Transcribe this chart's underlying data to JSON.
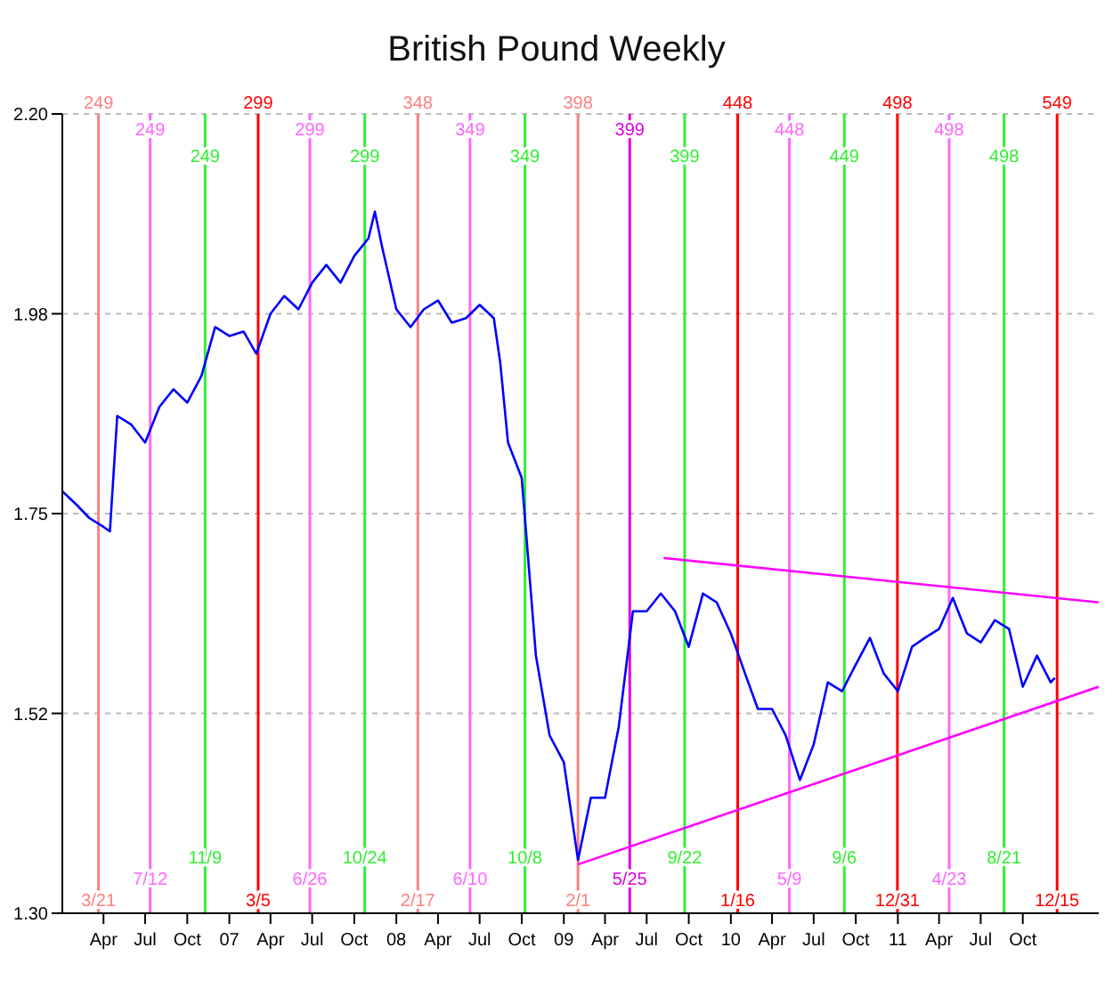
{
  "chart_data": {
    "type": "line",
    "title": "British Pound Weekly",
    "x": [
      "2006-01-01",
      "2006-02-01",
      "2006-03-01",
      "2006-04-01",
      "2006-04-15",
      "2006-05-01",
      "2006-06-01",
      "2006-07-01",
      "2006-08-01",
      "2006-09-01",
      "2006-10-01",
      "2006-11-01",
      "2006-12-01",
      "2007-01-01",
      "2007-02-01",
      "2007-03-01",
      "2007-04-01",
      "2007-05-01",
      "2007-06-01",
      "2007-07-01",
      "2007-08-01",
      "2007-09-01",
      "2007-10-01",
      "2007-11-01",
      "2007-11-15",
      "2007-12-01",
      "2008-01-01",
      "2008-02-01",
      "2008-03-01",
      "2008-04-01",
      "2008-05-01",
      "2008-06-01",
      "2008-07-01",
      "2008-08-01",
      "2008-08-15",
      "2008-09-01",
      "2008-10-01",
      "2008-11-01",
      "2008-12-01",
      "2009-01-01",
      "2009-02-01",
      "2009-03-01",
      "2009-04-01",
      "2009-05-01",
      "2009-06-01",
      "2009-07-01",
      "2009-08-01",
      "2009-09-01",
      "2009-10-01",
      "2009-11-01",
      "2009-12-01",
      "2010-01-01",
      "2010-02-01",
      "2010-03-01",
      "2010-04-01",
      "2010-05-01",
      "2010-06-01",
      "2010-07-01",
      "2010-08-01",
      "2010-09-01",
      "2010-10-01",
      "2010-11-01",
      "2010-12-01",
      "2011-01-01",
      "2011-02-01",
      "2011-03-01",
      "2011-04-01",
      "2011-05-01",
      "2011-06-01",
      "2011-07-01",
      "2011-08-01",
      "2011-09-01",
      "2011-10-01",
      "2011-11-01",
      "2011-12-01",
      "2011-12-10"
    ],
    "series": [
      {
        "color": "#0000ff",
        "values": [
          1.775,
          1.76,
          1.745,
          1.735,
          1.73,
          1.86,
          1.85,
          1.83,
          1.87,
          1.89,
          1.875,
          1.905,
          1.96,
          1.95,
          1.955,
          1.93,
          1.975,
          1.995,
          1.98,
          2.01,
          2.03,
          2.01,
          2.04,
          2.06,
          2.09,
          2.05,
          1.98,
          1.96,
          1.98,
          1.99,
          1.965,
          1.97,
          1.985,
          1.97,
          1.92,
          1.83,
          1.79,
          1.59,
          1.5,
          1.47,
          1.36,
          1.43,
          1.43,
          1.51,
          1.64,
          1.64,
          1.66,
          1.64,
          1.6,
          1.66,
          1.65,
          1.615,
          1.57,
          1.53,
          1.53,
          1.5,
          1.45,
          1.49,
          1.56,
          1.55,
          1.58,
          1.61,
          1.57,
          1.55,
          1.6,
          1.61,
          1.62,
          1.655,
          1.615,
          1.605,
          1.63,
          1.62,
          1.555,
          1.59,
          1.56,
          1.565
        ]
      },
      {
        "color": "#ff00ff",
        "x": [
          "2009-08-07",
          "2012-03-15"
        ],
        "values": [
          1.7,
          1.65
        ]
      },
      {
        "color": "#ff00ff",
        "x": [
          "2009-02-01",
          "2012-03-15"
        ],
        "values": [
          1.355,
          1.555
        ]
      }
    ],
    "xlim": [
      "2006-01-01",
      "2012-03-15"
    ],
    "xticks": [
      {
        "value": "2006-04-01",
        "label": "Apr"
      },
      {
        "value": "2006-07-01",
        "label": "Jul"
      },
      {
        "value": "2006-10-01",
        "label": "Oct"
      },
      {
        "value": "2007-01-01",
        "label": "07"
      },
      {
        "value": "2007-04-01",
        "label": "Apr"
      },
      {
        "value": "2007-07-01",
        "label": "Jul"
      },
      {
        "value": "2007-10-01",
        "label": "Oct"
      },
      {
        "value": "2008-01-01",
        "label": "08"
      },
      {
        "value": "2008-04-01",
        "label": "Apr"
      },
      {
        "value": "2008-07-01",
        "label": "Jul"
      },
      {
        "value": "2008-10-01",
        "label": "Oct"
      },
      {
        "value": "2009-01-01",
        "label": "09"
      },
      {
        "value": "2009-04-01",
        "label": "Apr"
      },
      {
        "value": "2009-07-01",
        "label": "Jul"
      },
      {
        "value": "2009-10-01",
        "label": "Oct"
      },
      {
        "value": "2010-01-01",
        "label": "10"
      },
      {
        "value": "2010-04-01",
        "label": "Apr"
      },
      {
        "value": "2010-07-01",
        "label": "Jul"
      },
      {
        "value": "2010-10-01",
        "label": "Oct"
      },
      {
        "value": "2011-01-01",
        "label": "11"
      },
      {
        "value": "2011-04-01",
        "label": "Apr"
      },
      {
        "value": "2011-07-01",
        "label": "Jul"
      },
      {
        "value": "2011-10-01",
        "label": "Oct"
      }
    ],
    "ylim": [
      1.3,
      2.2
    ],
    "yticks": [
      {
        "value": 1.3,
        "label": "1.30"
      },
      {
        "value": 1.525,
        "label": "1.52"
      },
      1.75,
      {
        "value": 1.975,
        "label": "1.98"
      },
      {
        "value": 2.2,
        "label": "2.20"
      }
    ],
    "grid": "y",
    "marker": "none",
    "line_style": "solid",
    "ref_lines": [
      {
        "axis": "x",
        "value": "2006-03-21",
        "label": "3/21",
        "color": "#ff7f7f"
      },
      {
        "axis": "x",
        "value": "2006-07-12",
        "label": "7/12",
        "color": "#ff66ff"
      },
      {
        "axis": "x",
        "value": "2006-11-09",
        "label": "11/9",
        "color": "#33ee33"
      },
      {
        "axis": "x",
        "value": "2007-03-05",
        "label": "3/5",
        "color": "#ff0000"
      },
      {
        "axis": "x",
        "value": "2007-06-26",
        "label": "6/26",
        "color": "#ff66ff"
      },
      {
        "axis": "x",
        "value": "2007-10-24",
        "label": "10/24",
        "color": "#33ee33"
      },
      {
        "axis": "x",
        "value": "2008-02-17",
        "label": "2/17",
        "color": "#ff7f7f"
      },
      {
        "axis": "x",
        "value": "2008-06-10",
        "label": "6/10",
        "color": "#ff66ff"
      },
      {
        "axis": "x",
        "value": "2008-10-08",
        "label": "10/8",
        "color": "#33ee33"
      },
      {
        "axis": "x",
        "value": "2009-02-01",
        "label": "2/1",
        "color": "#ff7f7f"
      },
      {
        "axis": "x",
        "value": "2009-05-25",
        "label": "5/25",
        "color": "#dd00dd"
      },
      {
        "axis": "x",
        "value": "2009-09-22",
        "label": "9/22",
        "color": "#33ee33"
      },
      {
        "axis": "x",
        "value": "2010-01-16",
        "label": "1/16",
        "color": "#ff0000"
      },
      {
        "axis": "x",
        "value": "2010-05-09",
        "label": "5/9",
        "color": "#ff66ff"
      },
      {
        "axis": "x",
        "value": "2010-09-06",
        "label": "9/6",
        "color": "#33ee33"
      },
      {
        "axis": "x",
        "value": "2010-12-31",
        "label": "12/31",
        "color": "#ff0000"
      },
      {
        "axis": "x",
        "value": "2011-04-23",
        "label": "4/23",
        "color": "#ff66ff"
      },
      {
        "axis": "x",
        "value": "2011-08-21",
        "label": "8/21",
        "color": "#33ee33"
      },
      {
        "axis": "x",
        "value": "2011-12-15",
        "label": "12/15",
        "color": "#ff0000"
      }
    ],
    "annotations": [
      {
        "text": "249",
        "x": "2006-03-21",
        "y": 2.2
      },
      {
        "text": "249",
        "x": "2006-07-12",
        "y": 2.17
      },
      {
        "text": "249",
        "x": "2006-11-09",
        "y": 2.14
      },
      {
        "text": "299",
        "x": "2007-03-05",
        "y": 2.2
      },
      {
        "text": "299",
        "x": "2007-06-26",
        "y": 2.17
      },
      {
        "text": "299",
        "x": "2007-10-24",
        "y": 2.14
      },
      {
        "text": "348",
        "x": "2008-02-17",
        "y": 2.2
      },
      {
        "text": "349",
        "x": "2008-06-10",
        "y": 2.17
      },
      {
        "text": "349",
        "x": "2008-10-08",
        "y": 2.14
      },
      {
        "text": "398",
        "x": "2009-02-01",
        "y": 2.2
      },
      {
        "text": "399",
        "x": "2009-05-25",
        "y": 2.17
      },
      {
        "text": "399",
        "x": "2009-09-22",
        "y": 2.14
      },
      {
        "text": "448",
        "x": "2010-01-16",
        "y": 2.2
      },
      {
        "text": "448",
        "x": "2010-05-09",
        "y": 2.17
      },
      {
        "text": "449",
        "x": "2010-09-06",
        "y": 2.14
      },
      {
        "text": "498",
        "x": "2010-12-31",
        "y": 2.2
      },
      {
        "text": "498",
        "x": "2011-04-23",
        "y": 2.17
      },
      {
        "text": "498",
        "x": "2011-08-21",
        "y": 2.14
      },
      {
        "text": "549",
        "x": "2011-12-15",
        "y": 2.2
      }
    ]
  }
}
